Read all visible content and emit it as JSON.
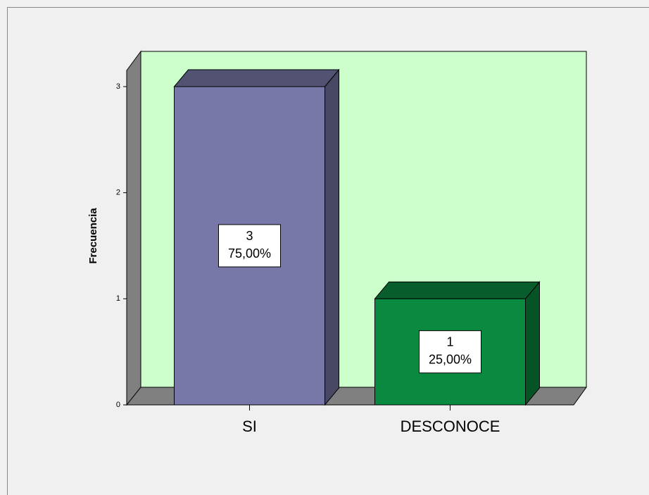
{
  "chart_data": {
    "type": "bar3d",
    "y_label": "Frecuencia",
    "categories": [
      "SI",
      "DESCONOCE"
    ],
    "values": [
      3,
      1
    ],
    "percentages": [
      75,
      25
    ],
    "percentage_labels": [
      "75,00%",
      "25,00%"
    ],
    "colors": [
      "#7878a8",
      "#0a8a40"
    ],
    "ylim": [
      0,
      3
    ],
    "yticks": [
      0,
      1,
      2,
      3
    ]
  }
}
